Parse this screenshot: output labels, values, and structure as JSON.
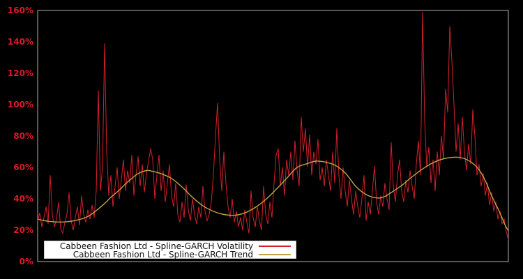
{
  "chart": {
    "background": "#000000",
    "frame_color": "#b0b0b0",
    "tick_label_color": "#e01a22"
  },
  "legend": {
    "entries": [
      {
        "label": "Cabbeen Fashion Ltd - Spline-GARCH Volatility",
        "color": "#d4202c"
      },
      {
        "label": "Cabbeen Fashion Ltd - Spline-GARCH Trend",
        "color": "#bfa443"
      }
    ]
  },
  "chart_data": {
    "type": "line",
    "title": "",
    "xlabel": "",
    "ylabel": "",
    "ylim": [
      0,
      160
    ],
    "grid": false,
    "legend_position": "lower-left-inside",
    "y_ticks": [
      {
        "value": 0,
        "label": "0%"
      },
      {
        "value": 20,
        "label": "20%"
      },
      {
        "value": 40,
        "label": "40%"
      },
      {
        "value": 60,
        "label": "60%"
      },
      {
        "value": 80,
        "label": "80%"
      },
      {
        "value": 100,
        "label": "100%"
      },
      {
        "value": 120,
        "label": "120%"
      },
      {
        "value": 140,
        "label": "140%"
      },
      {
        "value": 160,
        "label": "160%"
      }
    ],
    "series": [
      {
        "name": "Cabbeen Fashion Ltd - Spline-GARCH Volatility",
        "color": "#d4202c",
        "style": "spiky-line",
        "unit": "%",
        "values": [
          26,
          31,
          22,
          28,
          35,
          24,
          55,
          30,
          22,
          27,
          38,
          21,
          18,
          25,
          30,
          44,
          26,
          20,
          28,
          35,
          23,
          42,
          30,
          25,
          33,
          27,
          36,
          28,
          45,
          109,
          45,
          60,
          139,
          70,
          42,
          55,
          35,
          48,
          60,
          40,
          52,
          65,
          45,
          58,
          50,
          68,
          42,
          55,
          67,
          48,
          62,
          44,
          56,
          64,
          72,
          65,
          40,
          55,
          68,
          45,
          58,
          38,
          50,
          62,
          42,
          35,
          50,
          30,
          25,
          38,
          28,
          49,
          33,
          26,
          40,
          30,
          24,
          35,
          28,
          48,
          32,
          26,
          30,
          38,
          55,
          80,
          101,
          65,
          45,
          70,
          50,
          35,
          28,
          40,
          25,
          32,
          22,
          28,
          20,
          33,
          25,
          18,
          45,
          28,
          22,
          35,
          26,
          20,
          48,
          30,
          24,
          38,
          28,
          50,
          68,
          72,
          48,
          60,
          42,
          65,
          55,
          70,
          52,
          77,
          58,
          48,
          92,
          70,
          85,
          60,
          81,
          55,
          70,
          62,
          78,
          52,
          60,
          48,
          65,
          55,
          45,
          70,
          50,
          85,
          55,
          40,
          60,
          45,
          35,
          52,
          40,
          30,
          45,
          35,
          28,
          40,
          55,
          26,
          38,
          30,
          45,
          61,
          38,
          30,
          42,
          35,
          50,
          40,
          33,
          76,
          48,
          38,
          55,
          65,
          45,
          38,
          52,
          44,
          58,
          48,
          40,
          62,
          77,
          55,
          159,
          90,
          60,
          73,
          50,
          65,
          45,
          70,
          55,
          80,
          65,
          110,
          95,
          150,
          128,
          100,
          70,
          88,
          65,
          92,
          70,
          58,
          75,
          62,
          97,
          80,
          55,
          62,
          48,
          56,
          42,
          50,
          36,
          44,
          32,
          38,
          27,
          32,
          24,
          27,
          19,
          14
        ]
      },
      {
        "name": "Cabbeen Fashion Ltd - Spline-GARCH Trend",
        "color": "#bfa443",
        "style": "smooth-line",
        "unit": "%",
        "points": [
          [
            0,
            27
          ],
          [
            5,
            25.7
          ],
          [
            12,
            25.2
          ],
          [
            19,
            26.5
          ],
          [
            25,
            29.5
          ],
          [
            32,
            37
          ],
          [
            35,
            41
          ],
          [
            39,
            45.5
          ],
          [
            42,
            49.5
          ],
          [
            45,
            53
          ],
          [
            48,
            56
          ],
          [
            52,
            58
          ],
          [
            55,
            57.5
          ],
          [
            59,
            56
          ],
          [
            64,
            53
          ],
          [
            69,
            47.5
          ],
          [
            74,
            41
          ],
          [
            79,
            35.5
          ],
          [
            84,
            32
          ],
          [
            89,
            30
          ],
          [
            94,
            29.5
          ],
          [
            99,
            31
          ],
          [
            104,
            34.5
          ],
          [
            109,
            39.5
          ],
          [
            114,
            46
          ],
          [
            119,
            53
          ],
          [
            124,
            60
          ],
          [
            129,
            62.5
          ],
          [
            133,
            64
          ],
          [
            137,
            63.5
          ],
          [
            142,
            61.5
          ],
          [
            147,
            56.5
          ],
          [
            152,
            48
          ],
          [
            156,
            43.5
          ],
          [
            159,
            41.5
          ],
          [
            163,
            40.5
          ],
          [
            166,
            41.5
          ],
          [
            169,
            44
          ],
          [
            174,
            48.5
          ],
          [
            179,
            54
          ],
          [
            184,
            59
          ],
          [
            189,
            63
          ],
          [
            194,
            65.5
          ],
          [
            199,
            66.5
          ],
          [
            203,
            66
          ],
          [
            207,
            63.5
          ],
          [
            211,
            58.5
          ],
          [
            214,
            51.5
          ],
          [
            217,
            42
          ],
          [
            221,
            31
          ],
          [
            223,
            24.5
          ],
          [
            225,
            19.5
          ]
        ]
      }
    ]
  }
}
